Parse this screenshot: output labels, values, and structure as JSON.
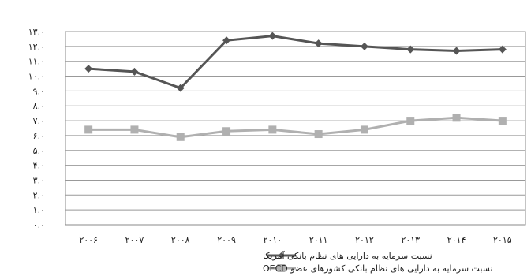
{
  "chart_data": {
    "type": "line",
    "title": "",
    "xlabel": "",
    "ylabel": "",
    "grid": "horizontal",
    "legend_position": "bottom",
    "ylim": [
      0,
      13
    ],
    "y_ticks": [
      "۰.۰",
      "۱.۰",
      "۲.۰",
      "۳.۰",
      "۴.۰",
      "۵.۰",
      "۶.۰",
      "۷.۰",
      "۸.۰",
      "۹.۰",
      "۱۰.۰",
      "۱۱.۰",
      "۱۲.۰",
      "۱۳.۰"
    ],
    "x_ticks": [
      "۲۰۰۶",
      "۲۰۰۷",
      "۲۰۰۸",
      "۲۰۰۹",
      "۲۰۱۰",
      "۲۰۱۱",
      "۲۰۱۲",
      "۲۰۱۳",
      "۲۰۱۴",
      "۲۰۱۵"
    ],
    "x": [
      2006,
      2007,
      2008,
      2009,
      2010,
      2011,
      2012,
      2013,
      2014,
      2015
    ],
    "series": [
      {
        "name": "نسبت سرمایه به دارایی های نظام بانکی آمریکا",
        "color": "#555555",
        "marker": "diamond",
        "values": [
          10.5,
          10.3,
          9.2,
          12.4,
          12.7,
          12.2,
          12.0,
          11.8,
          11.7,
          11.8
        ]
      },
      {
        "name": "نسبت سرمایه به دارایی های نظام بانکی کشورهای عضو OECD",
        "color": "#b0b0b0",
        "marker": "square",
        "values": [
          6.4,
          6.4,
          5.9,
          6.3,
          6.4,
          6.1,
          6.4,
          7.0,
          7.2,
          7.0
        ]
      }
    ]
  }
}
